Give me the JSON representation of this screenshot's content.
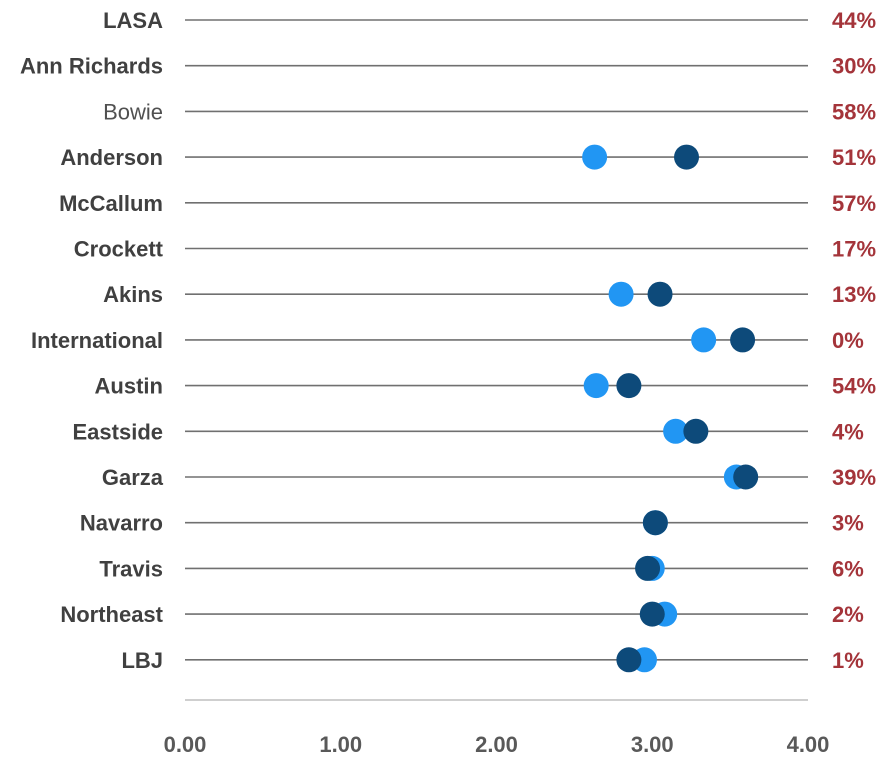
{
  "chart_data": {
    "type": "scatter",
    "subtype": "dot-plot",
    "xlim": [
      0,
      4
    ],
    "x_ticks": [
      "0.00",
      "1.00",
      "2.00",
      "3.00",
      "4.00"
    ],
    "categories": [
      "LASA",
      "Ann Richards",
      "Bowie",
      "Anderson",
      "McCallum",
      "Crockett",
      "Akins",
      "International",
      "Austin",
      "Eastside",
      "Garza",
      "Navarro",
      "Travis",
      "Northeast",
      "LBJ"
    ],
    "series": [
      {
        "color": "#2196F3",
        "values": [
          null,
          null,
          null,
          2.63,
          null,
          null,
          2.8,
          3.33,
          2.64,
          3.15,
          3.54,
          3.02,
          3.0,
          3.08,
          2.95
        ]
      },
      {
        "color": "#0D4A7A",
        "values": [
          null,
          null,
          null,
          3.22,
          null,
          null,
          3.05,
          3.58,
          2.85,
          3.28,
          3.6,
          3.02,
          2.97,
          3.0,
          2.85
        ]
      }
    ],
    "right_labels": [
      "44%",
      "30%",
      "58%",
      "51%",
      "57%",
      "17%",
      "13%",
      "0%",
      "54%",
      "4%",
      "39%",
      "3%",
      "6%",
      "2%",
      "1%"
    ],
    "right_label_color": "#A4343A",
    "line_color": "#707070",
    "axis_color": "#BFBFBF"
  }
}
